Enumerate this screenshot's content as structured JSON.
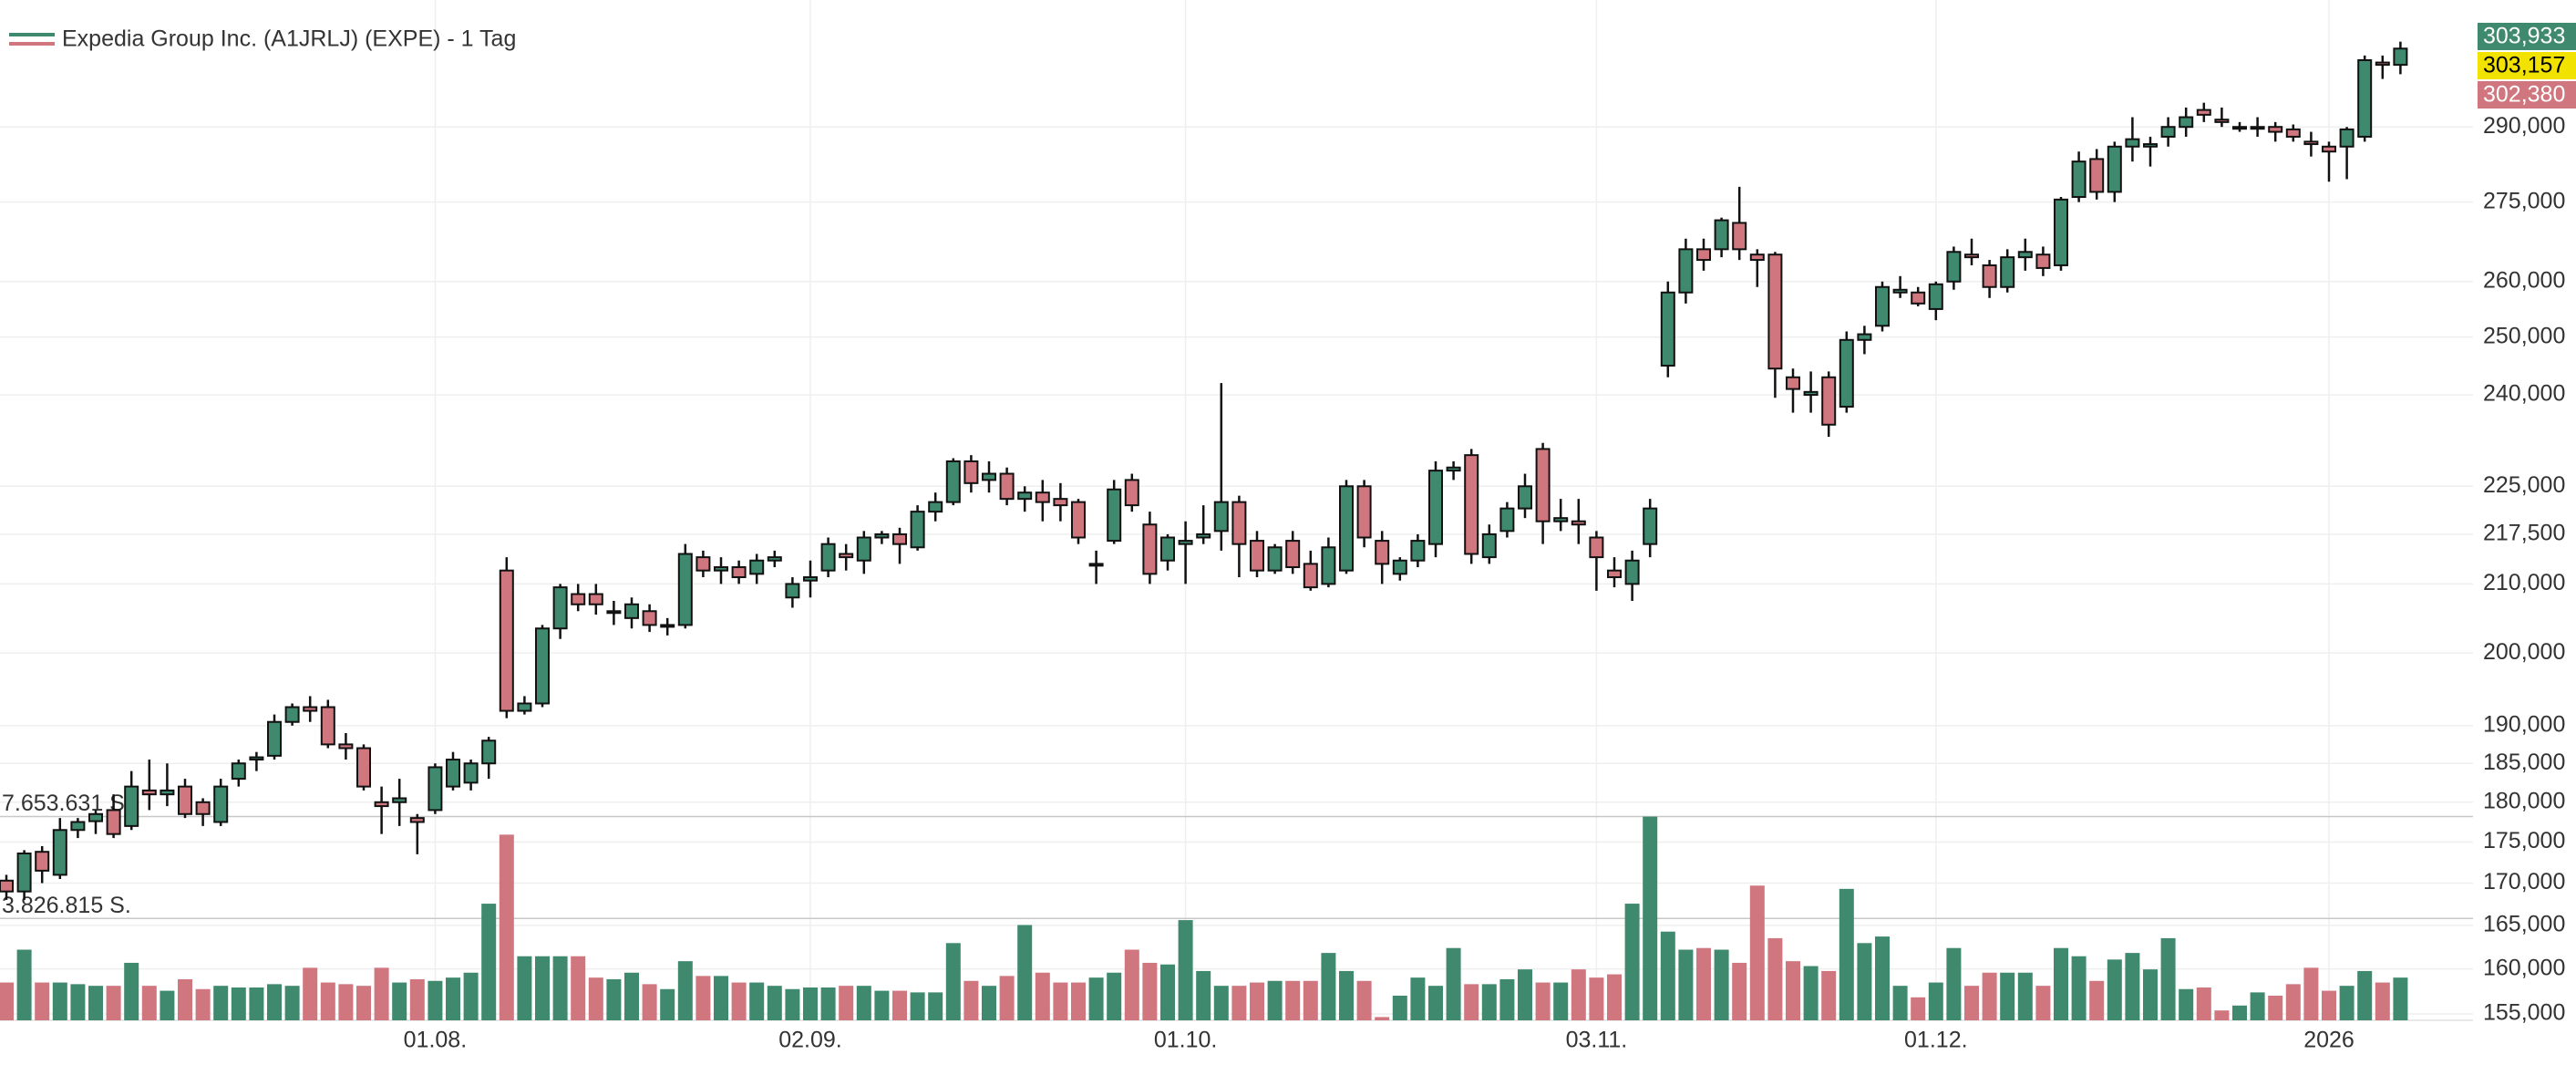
{
  "chart_data": {
    "type": "candlestick",
    "title": "Expedia Group Inc. (A1JRLJ) (EXPE) - 1 Tag",
    "up_color": "#3f8a6e",
    "down_color": "#d0767e",
    "legend_colors": [
      "#3f8a6e",
      "#d0767e"
    ],
    "log_scale": true,
    "grid": true,
    "categories": [
      null,
      null,
      null,
      null,
      null,
      null,
      null,
      null,
      null,
      null,
      null,
      null,
      null,
      null,
      null,
      null,
      null,
      null,
      null,
      null,
      null,
      null,
      null,
      null,
      "01.08.",
      null,
      null,
      null,
      null,
      null,
      null,
      null,
      null,
      null,
      null,
      null,
      null,
      null,
      null,
      null,
      null,
      null,
      null,
      null,
      null,
      "02.09.",
      null,
      null,
      null,
      null,
      null,
      null,
      null,
      null,
      null,
      null,
      null,
      null,
      null,
      null,
      null,
      null,
      null,
      null,
      null,
      null,
      "01.10.",
      null,
      null,
      null,
      null,
      null,
      null,
      null,
      null,
      null,
      null,
      null,
      null,
      null,
      null,
      null,
      null,
      null,
      null,
      null,
      null,
      null,
      null,
      "03.11.",
      null,
      null,
      null,
      null,
      null,
      null,
      null,
      null,
      null,
      null,
      null,
      null,
      null,
      null,
      null,
      null,
      null,
      null,
      "01.12.",
      null,
      null,
      null,
      null,
      null,
      null,
      null,
      null,
      null,
      null,
      null,
      null,
      null,
      null,
      null,
      null,
      null,
      null,
      null,
      null,
      null,
      "2026",
      null,
      null,
      null,
      null
    ],
    "open": [
      170.3,
      169,
      173.8,
      171,
      176.5,
      177.6,
      179,
      177,
      181.5,
      181,
      182,
      180,
      177.5,
      183,
      185.5,
      186,
      190.5,
      192.5,
      192.5,
      187.5,
      187,
      180,
      180,
      178,
      179,
      182,
      182.5,
      185,
      212,
      192,
      193,
      203.5,
      208.5,
      208.5,
      206,
      205,
      206,
      204,
      204,
      214,
      212,
      212.5,
      211.5,
      213.5,
      208,
      210.5,
      212,
      214.5,
      213.5,
      217,
      217.5,
      215.5,
      221,
      222.5,
      229,
      226,
      227,
      223,
      224,
      223,
      222.5,
      213,
      216.5,
      226,
      219,
      213.5,
      216,
      217,
      218,
      222.5,
      216.5,
      212,
      216.5,
      213,
      210,
      212,
      225,
      216.5,
      211.5,
      213.5,
      216,
      227.5,
      230,
      214,
      218,
      221.5,
      231,
      219.5,
      219.5,
      217,
      212,
      210,
      216,
      245,
      258,
      266,
      266,
      271,
      265,
      265,
      243,
      240,
      243,
      238,
      249.5,
      252,
      258,
      258,
      255,
      260,
      265,
      263,
      259,
      264.5,
      265,
      263,
      276,
      283.5,
      277,
      286,
      286,
      288,
      290,
      293.5,
      291.5,
      290,
      290,
      290,
      289.5,
      287,
      286,
      286,
      288,
      303.5,
      303
    ],
    "high": [
      171,
      174,
      174.5,
      178,
      178,
      179,
      181,
      184,
      185.5,
      185,
      183,
      180.5,
      183,
      185.5,
      186.5,
      191.5,
      193,
      194,
      193.5,
      189,
      187.5,
      182,
      183,
      178.5,
      185,
      186.5,
      185.5,
      188.5,
      214,
      194,
      204,
      210,
      210,
      210,
      207.5,
      208,
      207,
      205,
      216,
      215,
      214,
      213.5,
      214.5,
      215,
      211,
      213.5,
      217,
      216,
      218,
      218,
      218.5,
      222,
      224,
      229.5,
      230,
      229,
      228,
      225,
      226,
      225.5,
      223,
      215,
      226,
      227,
      221,
      217.5,
      219.5,
      222,
      242,
      223.5,
      218,
      216,
      218,
      215,
      217,
      226,
      226,
      218,
      214,
      217.5,
      229,
      229,
      231,
      219,
      222.5,
      227,
      232,
      223,
      223,
      218,
      214,
      215,
      223,
      260,
      268,
      268,
      272,
      278,
      266,
      265.5,
      244.5,
      244,
      244,
      251,
      252,
      260,
      261,
      259,
      260,
      266.5,
      268,
      264,
      266,
      268,
      266.5,
      276,
      285,
      285.5,
      287,
      292,
      288,
      292,
      294,
      295,
      294,
      291,
      292,
      291,
      290.5,
      289,
      287,
      290,
      305,
      305,
      308
    ],
    "low": [
      168,
      168,
      170,
      170.5,
      175.5,
      176,
      175.5,
      176.5,
      179,
      179.5,
      178,
      177,
      177,
      182,
      184,
      185.5,
      190,
      190.5,
      187,
      185.5,
      181.5,
      176,
      177,
      173.5,
      178.5,
      181.5,
      181.5,
      183,
      191,
      191.5,
      192.5,
      202,
      206,
      205.5,
      204,
      203.5,
      203,
      202.5,
      203.5,
      211,
      210,
      210,
      210,
      212.5,
      206.5,
      208,
      211,
      212,
      211.5,
      216,
      213,
      215,
      219.5,
      222,
      224,
      224,
      222,
      221,
      219.5,
      219.5,
      216,
      210,
      216,
      221,
      210,
      212,
      210,
      216,
      215,
      211,
      211,
      211.5,
      211.5,
      209,
      209.5,
      211.5,
      215.5,
      210,
      210.5,
      212.5,
      214,
      226,
      213,
      213,
      217,
      220,
      216,
      218,
      216,
      209,
      209.5,
      207.5,
      214,
      243,
      256,
      262,
      264.5,
      264,
      259,
      239.5,
      237,
      237,
      233,
      237,
      247,
      251,
      257,
      255.5,
      253,
      258.5,
      263,
      257,
      258,
      262,
      261,
      262,
      275,
      275.5,
      275,
      283,
      282,
      286,
      288,
      291,
      290,
      289,
      288,
      287,
      287,
      284,
      279,
      279.5,
      287,
      300,
      301
    ],
    "close": [
      169,
      173.6,
      171.5,
      176.5,
      177.5,
      178.5,
      176,
      182,
      181,
      181.5,
      178.5,
      178.5,
      182,
      185,
      185.8,
      190.5,
      192.5,
      192,
      187.5,
      187,
      182,
      179.5,
      180.5,
      177.5,
      184.5,
      185.5,
      185,
      188,
      192,
      193,
      203.5,
      209.5,
      207,
      207,
      206,
      207,
      204,
      204,
      214.5,
      212,
      212.5,
      211,
      213.5,
      214,
      210,
      211,
      216,
      214,
      217,
      217.5,
      216,
      221,
      222.5,
      229,
      225.5,
      227,
      223,
      224,
      222.5,
      222,
      217,
      213,
      224.5,
      222,
      211.5,
      217,
      216.5,
      217.5,
      222.5,
      216,
      212,
      215.5,
      212.5,
      209.5,
      215.5,
      225,
      217,
      213,
      213.5,
      216.5,
      227.5,
      228,
      214.5,
      217.5,
      221.5,
      225,
      219.5,
      220,
      219,
      214,
      211,
      213.5,
      221.5,
      258,
      266,
      264,
      271.5,
      266,
      264,
      244.5,
      241,
      240.5,
      235,
      249.5,
      250.5,
      259,
      258.5,
      256,
      259.5,
      265.5,
      264.5,
      259,
      264.5,
      265.5,
      262.5,
      275.5,
      283,
      277,
      286,
      287.5,
      286.5,
      290,
      292,
      292.5,
      291,
      290,
      290,
      289,
      288,
      286.5,
      285,
      289.5,
      304,
      303,
      306.5
    ],
    "volume": [
      1420000,
      2654000,
      1420000,
      1420000,
      1358000,
      1296000,
      1296000,
      2160000,
      1296000,
      1111000,
      1543000,
      1173000,
      1296000,
      1234000,
      1234000,
      1358000,
      1296000,
      1975000,
      1420000,
      1358000,
      1296000,
      1975000,
      1420000,
      1543000,
      1481000,
      1605000,
      1790000,
      4382000,
      6975000,
      2407000,
      2407000,
      2407000,
      2407000,
      1605000,
      1543000,
      1790000,
      1358000,
      1173000,
      2222000,
      1666000,
      1666000,
      1420000,
      1420000,
      1296000,
      1173000,
      1234000,
      1234000,
      1296000,
      1296000,
      1111000,
      1111000,
      1049000,
      1049000,
      2901000,
      1481000,
      1296000,
      1666000,
      3580000,
      1790000,
      1420000,
      1420000,
      1605000,
      1790000,
      2654000,
      2160000,
      2098000,
      3765000,
      1852000,
      1296000,
      1296000,
      1420000,
      1481000,
      1481000,
      1481000,
      2531000,
      1852000,
      1481000,
      123000,
      926000,
      1605000,
      1296000,
      2716000,
      1358000,
      1358000,
      1543000,
      1913000,
      1420000,
      1420000,
      1913000,
      1605000,
      1728000,
      4382000,
      7653000,
      3333000,
      2654000,
      2716000,
      2654000,
      2160000,
      5061000,
      3086000,
      2222000,
      2037000,
      1852000,
      4938000,
      2901000,
      3148000,
      1296000,
      864000,
      1420000,
      2716000,
      1296000,
      1790000,
      1790000,
      1790000,
      1296000,
      2716000,
      2407000,
      1481000,
      2284000,
      2531000,
      1913000,
      3086000,
      1173000,
      1234000,
      370000,
      555000,
      1049000,
      926000,
      1358000,
      1975000,
      1111000,
      1296000,
      1852000,
      1420000,
      1605000
    ],
    "ylim": [
      154.3,
      317.2
    ],
    "yticks": [
      {
        "value": 155,
        "label": "155,000"
      },
      {
        "value": 160,
        "label": "160,000"
      },
      {
        "value": 165,
        "label": "165,000"
      },
      {
        "value": 170,
        "label": "170,000"
      },
      {
        "value": 175,
        "label": "175,000"
      },
      {
        "value": 180,
        "label": "180,000"
      },
      {
        "value": 185,
        "label": "185,000"
      },
      {
        "value": 190,
        "label": "190,000"
      },
      {
        "value": 200,
        "label": "200,000"
      },
      {
        "value": 210,
        "label": "210,000"
      },
      {
        "value": 217.5,
        "label": "217,500"
      },
      {
        "value": 225,
        "label": "225,000"
      },
      {
        "value": 240,
        "label": "240,000"
      },
      {
        "value": 250,
        "label": "250,000"
      },
      {
        "value": 260,
        "label": "260,000"
      },
      {
        "value": 275,
        "label": "275,000"
      },
      {
        "value": 290,
        "label": "290,000"
      }
    ],
    "y2lim": [
      0,
      38330000
    ],
    "y2ticks": [
      {
        "value": 3826815,
        "label": "3.826.815 S."
      },
      {
        "value": 7653631,
        "label": "7.653.631 S."
      }
    ],
    "price_labels": [
      {
        "value": 303.933,
        "label": "303,933",
        "color": "#3f8a6e"
      },
      {
        "value": 303.157,
        "label": "303,157",
        "color": "#f2e200"
      },
      {
        "value": 302.38,
        "label": "302,380",
        "color": "#d0767e"
      }
    ]
  }
}
